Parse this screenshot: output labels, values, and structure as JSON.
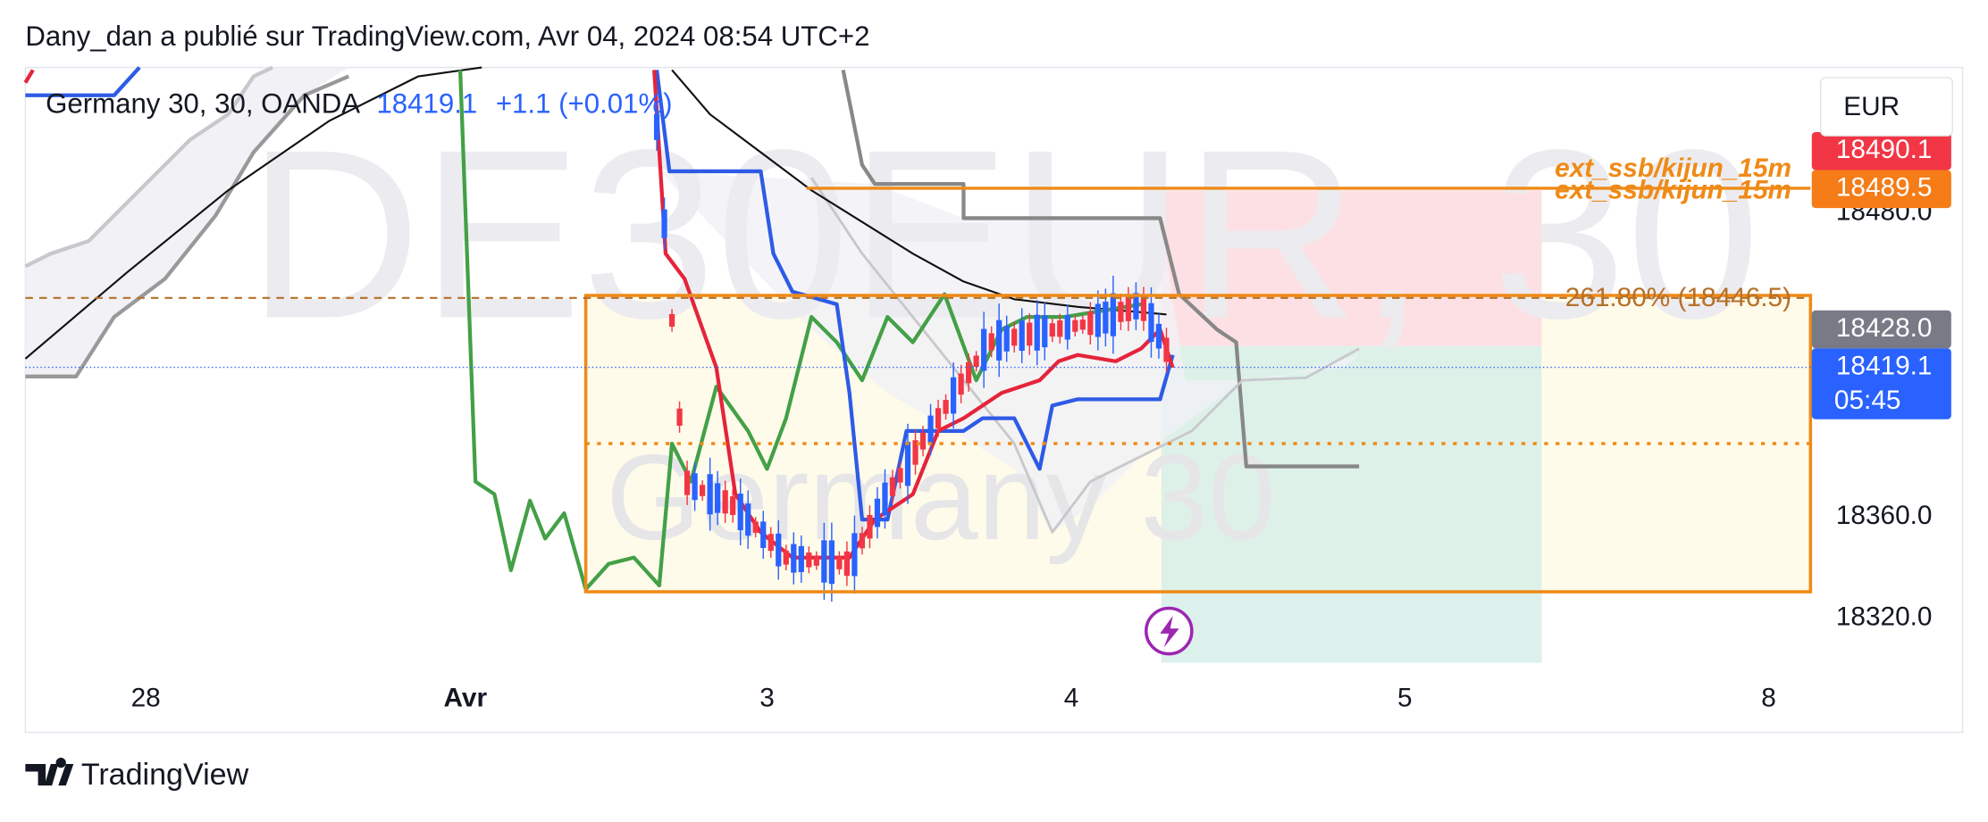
{
  "header": {
    "publisher": "Dany_dan a publié sur TradingView.com, Avr 04, 2024 08:54 UTC+2"
  },
  "symbol": {
    "name": "Germany 30, 30, OANDA",
    "price": "18419.1",
    "change": "+1.1 (+0.01%)"
  },
  "watermark": {
    "ticker": "DE30EUR, 30",
    "name": "Germany 30"
  },
  "currency": "EUR",
  "price_axis": {
    "yticks": [
      {
        "value": 18320,
        "label": "18320.0"
      },
      {
        "value": 18360,
        "label": "18360.0"
      },
      {
        "value": 18480,
        "label": "18480.0"
      }
    ]
  },
  "price_labels": [
    {
      "value": 18490.1,
      "label": "18490.1",
      "color": "#f23645"
    },
    {
      "value": 18489.5,
      "label": "18489.5",
      "color": "#f57c17"
    },
    {
      "value": 18428,
      "label": "18428.0",
      "color": "#787b86"
    },
    {
      "value": 18419.1,
      "label": "18419.1",
      "countdown": "05:45",
      "color": "#2962ff"
    }
  ],
  "annotations": [
    {
      "text": "ext_ssb/kijun_15m",
      "value": 18490.1
    },
    {
      "text": "ext_ssb/kijun_15m",
      "value": 18489.5
    },
    {
      "text": "261.80% (18446.5)",
      "value": 18446.5
    }
  ],
  "x_axis": {
    "labels": [
      "28",
      "Avr",
      "3",
      "4",
      "5",
      "8"
    ]
  },
  "footer": {
    "brand": "TradingView"
  }
}
